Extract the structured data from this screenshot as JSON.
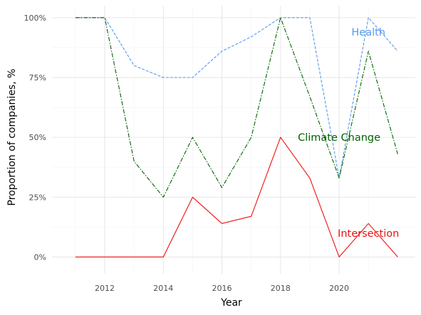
{
  "chart_data": {
    "type": "line",
    "xlabel": "Year",
    "ylabel": "Proportion of companies, %",
    "x": [
      2011,
      2012,
      2013,
      2014,
      2015,
      2016,
      2017,
      2018,
      2019,
      2020,
      2021,
      2022
    ],
    "xlim": [
      2010.2,
      2022.6
    ],
    "ylim": [
      -0.07,
      1.05
    ],
    "x_ticks": [
      2012,
      2014,
      2016,
      2018,
      2020
    ],
    "x_tick_labels": [
      "2012",
      "2014",
      "2016",
      "2018",
      "2020"
    ],
    "y_ticks": [
      0,
      0.25,
      0.5,
      0.75,
      1.0
    ],
    "y_tick_labels": [
      "0%",
      "25%",
      "50%",
      "75%",
      "100%"
    ],
    "grid": true,
    "legend": "none",
    "series": [
      {
        "name": "Health",
        "values": [
          1.0,
          1.0,
          0.8,
          0.75,
          0.75,
          0.86,
          0.92,
          1.0,
          1.0,
          0.33,
          1.0,
          0.86
        ],
        "color": "#5599ee",
        "line_style": "dashed"
      },
      {
        "name": "Climate Change",
        "values": [
          1.0,
          1.0,
          0.4,
          0.25,
          0.5,
          0.29,
          0.5,
          1.0,
          0.67,
          0.33,
          0.86,
          0.43
        ],
        "color": "#006400",
        "line_style": "dashdot"
      },
      {
        "name": "Intersection",
        "values": [
          0.0,
          0.0,
          0.0,
          0.0,
          0.25,
          0.14,
          0.17,
          0.5,
          0.33,
          0.0,
          0.14,
          0.0
        ],
        "color": "#ee1111",
        "line_style": "solid"
      }
    ],
    "annotations": [
      {
        "text": "Health",
        "x": 2021.0,
        "y": 0.94,
        "color": "#5599ee"
      },
      {
        "text": "Climate Change",
        "x": 2020.0,
        "y": 0.5,
        "color": "#006400"
      },
      {
        "text": "Intersection",
        "x": 2021.0,
        "y": 0.1,
        "color": "#ee1111"
      }
    ]
  }
}
